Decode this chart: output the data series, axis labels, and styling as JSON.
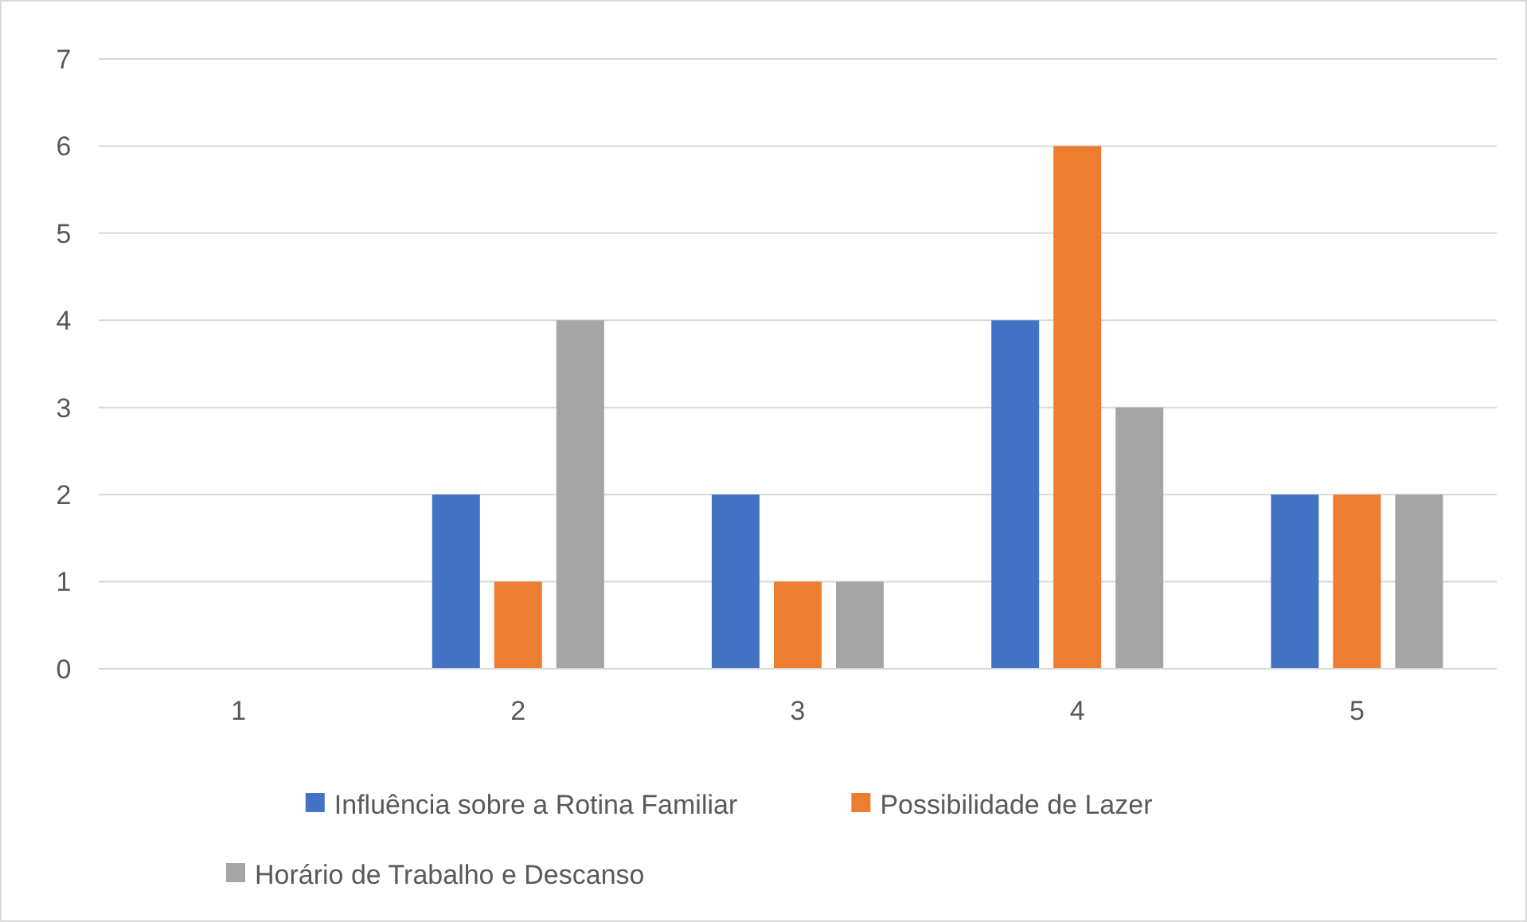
{
  "chart_data": {
    "type": "bar",
    "categories": [
      "1",
      "2",
      "3",
      "4",
      "5"
    ],
    "series": [
      {
        "name": "Influência sobre a Rotina Familiar",
        "color": "#4472c4",
        "values": [
          0,
          2,
          2,
          4,
          2
        ]
      },
      {
        "name": "Possibilidade de Lazer",
        "color": "#ed7d31",
        "values": [
          0,
          1,
          1,
          6,
          2
        ]
      },
      {
        "name": "Horário de Trabalho e Descanso",
        "color": "#a5a5a5",
        "values": [
          0,
          4,
          1,
          3,
          2
        ]
      }
    ],
    "ylim": [
      0,
      7
    ],
    "yticks": [
      0,
      1,
      2,
      3,
      4,
      5,
      6,
      7
    ],
    "grid": "y",
    "legend": "bottom"
  }
}
